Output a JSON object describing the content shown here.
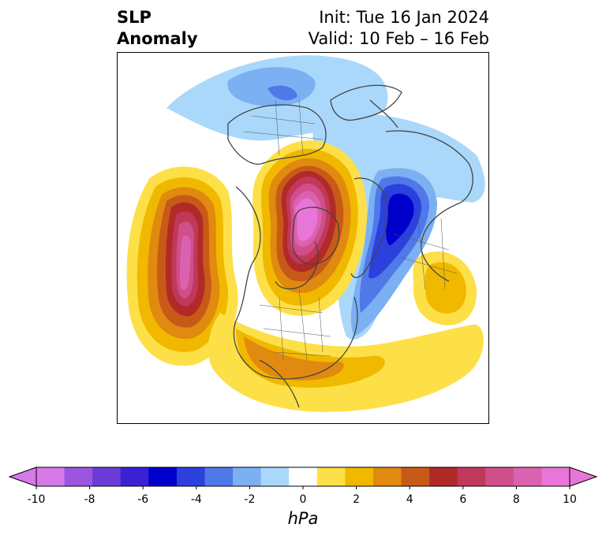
{
  "title": {
    "left_line1": "SLP",
    "left_line2": "Anomaly",
    "right_line1": "Init: Tue 16 Jan 2024",
    "right_line2": "Valid: 10 Feb – 16 Feb"
  },
  "colorbar": {
    "unit": "hPa",
    "levels": [
      -10,
      -9,
      -8,
      -7,
      -6,
      -5,
      -4,
      -3,
      -2,
      -1,
      1,
      2,
      3,
      4,
      5,
      6,
      7,
      8,
      9,
      10
    ],
    "tick_labels": [
      "-10",
      "-8",
      "-6",
      "-4",
      "-2",
      "0",
      "2",
      "4",
      "6",
      "8",
      "10"
    ],
    "extend": "both",
    "colors": [
      "#d67ae8",
      "#9c55e0",
      "#6a3bd6",
      "#3a22d4",
      "#0000cd",
      "#2b40dd",
      "#4f78e8",
      "#7bb0f2",
      "#aad8fb",
      "#ffffff",
      "#fde047",
      "#f1b800",
      "#e08a10",
      "#c85a18",
      "#b22a28",
      "#c0395a",
      "#d04f8a",
      "#db62b0",
      "#e876d8"
    ]
  },
  "map": {
    "projection": "north-polar-stereographic",
    "anomaly_features": [
      {
        "name": "negative anomaly over eastern Siberia / Sea of Okhotsk",
        "min_hPa": -3
      },
      {
        "name": "positive anomaly centered over Arctic Ocean / Greenland side",
        "max_hPa": 10
      },
      {
        "name": "negative anomaly over Scandinavia / northwest Europe",
        "min_hPa": -7
      },
      {
        "name": "positive anomaly over northeast Pacific / Gulf of Alaska",
        "max_hPa": 8
      },
      {
        "name": "positive anomaly over western/central Europe",
        "max_hPa": 3
      }
    ]
  }
}
